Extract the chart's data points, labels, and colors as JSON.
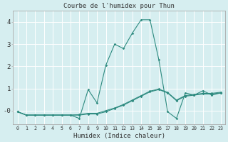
{
  "title": "Courbe de l'humidex pour Thun",
  "xlabel": "Humidex (Indice chaleur)",
  "xlim": [
    -0.5,
    23.5
  ],
  "ylim": [
    -0.6,
    4.5
  ],
  "background_color": "#d6eef0",
  "grid_color": "#ffffff",
  "line_color": "#2e8b80",
  "series1": {
    "x": [
      0,
      1,
      2,
      3,
      4,
      5,
      6,
      7,
      8,
      9,
      10,
      11,
      12,
      13,
      14,
      15,
      16,
      17,
      18,
      19,
      20,
      21,
      22,
      23
    ],
    "y": [
      -0.05,
      -0.2,
      -0.2,
      -0.2,
      -0.2,
      -0.2,
      -0.2,
      -0.2,
      -0.15,
      -0.15,
      -0.05,
      0.1,
      0.25,
      0.45,
      0.65,
      0.85,
      0.95,
      0.8,
      0.45,
      0.65,
      0.7,
      0.75,
      0.75,
      0.8
    ]
  },
  "series2": {
    "x": [
      0,
      1,
      2,
      3,
      4,
      5,
      6,
      7,
      8,
      9,
      10,
      11,
      12,
      13,
      14,
      15,
      16,
      17,
      18,
      19,
      20,
      21,
      22,
      23
    ],
    "y": [
      -0.05,
      -0.2,
      -0.2,
      -0.2,
      -0.2,
      -0.2,
      -0.2,
      -0.35,
      0.95,
      0.35,
      2.05,
      3.0,
      2.8,
      3.5,
      4.1,
      4.1,
      2.3,
      -0.05,
      -0.35,
      0.8,
      0.7,
      0.9,
      0.7,
      0.8
    ]
  },
  "series3": {
    "x": [
      0,
      1,
      2,
      3,
      4,
      5,
      6,
      7,
      8,
      9,
      10,
      11,
      12,
      13,
      14,
      15,
      16,
      17,
      18,
      19,
      20,
      21,
      22,
      23
    ],
    "y": [
      -0.05,
      -0.2,
      -0.2,
      -0.2,
      -0.2,
      -0.2,
      -0.2,
      -0.18,
      -0.12,
      -0.12,
      0.0,
      0.12,
      0.28,
      0.48,
      0.68,
      0.88,
      0.98,
      0.82,
      0.48,
      0.68,
      0.73,
      0.78,
      0.78,
      0.83
    ]
  }
}
